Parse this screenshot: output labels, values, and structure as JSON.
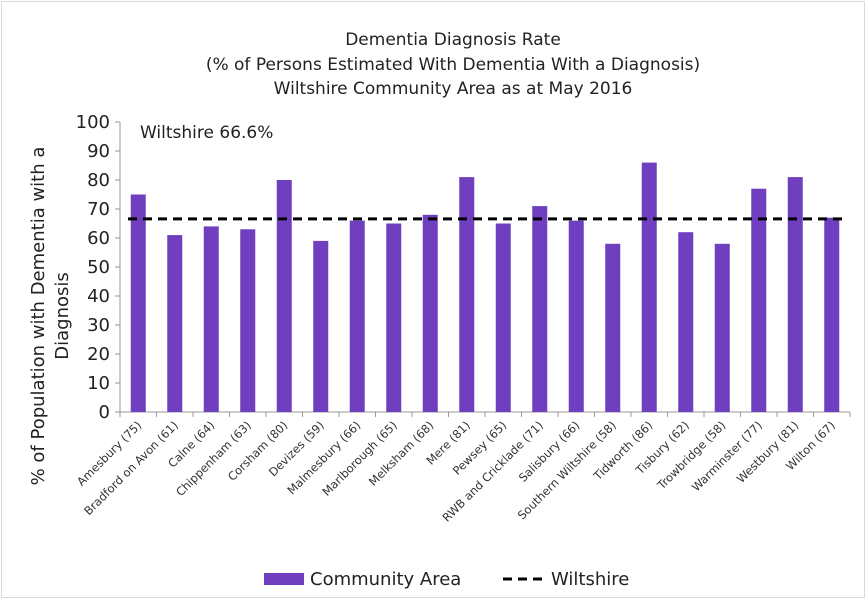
{
  "chart_data": {
    "type": "bar",
    "title_lines": [
      "Dementia Diagnosis Rate",
      "(% of Persons Estimated With Dementia With a Diagnosis)",
      "Wiltshire Community Area as at May 2016"
    ],
    "ylabel_lines": [
      "% of Population with Dementia with a",
      "Diagnosis"
    ],
    "xlabel": "",
    "ylim": [
      0,
      100
    ],
    "yticks": [
      "0",
      "10",
      "20",
      "30",
      "40",
      "50",
      "60",
      "70",
      "80",
      "90",
      "100"
    ],
    "grid": false,
    "categories": [
      "Amesbury (75)",
      "Bradford on Avon (61)",
      "Calne (64)",
      "Chippenham (63)",
      "Corsham (80)",
      "Devizes (59)",
      "Malmesbury (66)",
      "Marlborough (65)",
      "Melksham (68)",
      "Mere (81)",
      "Pewsey (65)",
      "RWB and Cricklade (71)",
      "Salisbury (66)",
      "Southern Wiltshire (58)",
      "Tidworth (86)",
      "Tisbury (62)",
      "Trowbridge (58)",
      "Warminster (77)",
      "Westbury (81)",
      "Wilton (67)"
    ],
    "series": [
      {
        "name": "Community Area",
        "color": "#6f3fbf",
        "values": [
          75,
          61,
          64,
          63,
          80,
          59,
          66,
          65,
          68,
          81,
          65,
          71,
          66,
          58,
          86,
          62,
          58,
          77,
          81,
          67
        ]
      }
    ],
    "reference_line": {
      "name": "Wiltshire",
      "value": 66.6,
      "style": "dashed",
      "color": "#000000"
    },
    "annotation": "Wiltshire 66.6%",
    "legend": {
      "position": "bottom",
      "items": [
        "Community Area",
        "Wiltshire"
      ]
    }
  }
}
